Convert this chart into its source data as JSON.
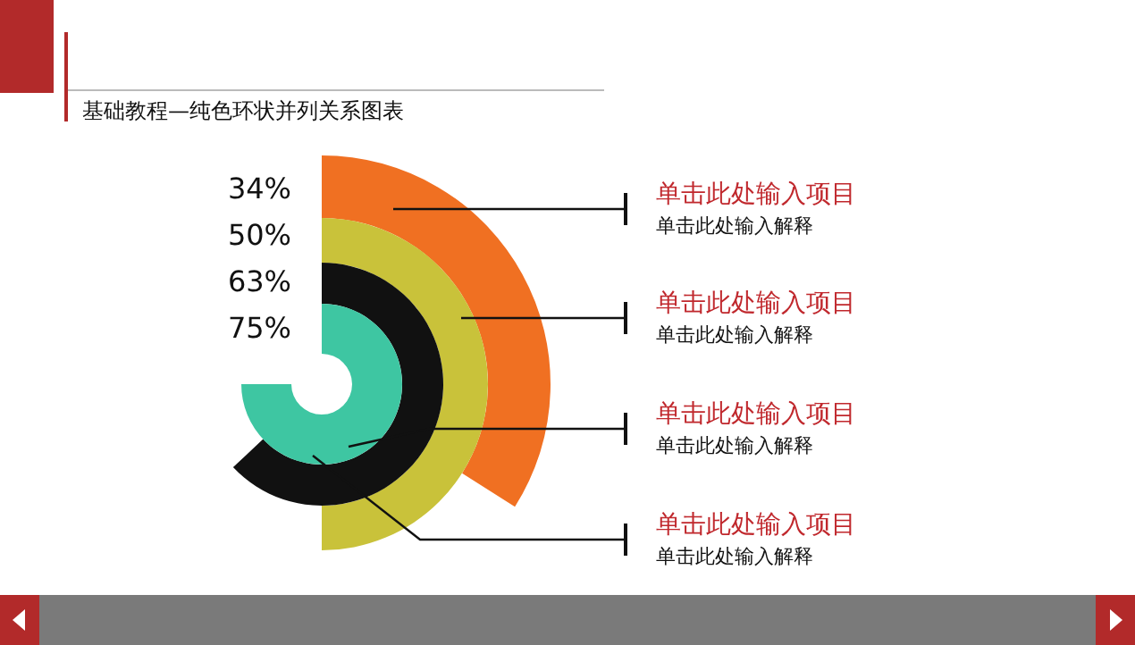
{
  "chart_data": {
    "type": "other",
    "subtitle": "基础教程—纯色环状并列关系图表",
    "categories": [
      null,
      null,
      null,
      null
    ],
    "values": [
      34,
      50,
      63,
      75
    ],
    "value_labels": [
      "34%",
      "50%",
      "63%",
      "75%"
    ],
    "colors": [
      "#f07022",
      "#c9c23a",
      "#111111",
      "#3ec6a2"
    ],
    "annotations": [
      "单击此处输入项目",
      "单击此处输入项目",
      "单击此处输入项目",
      "单击此处输入项目",
      "单击此处输入解释",
      "单击此处输入解释",
      "单击此处输入解释",
      "单击此处输入解释"
    ]
  }
}
